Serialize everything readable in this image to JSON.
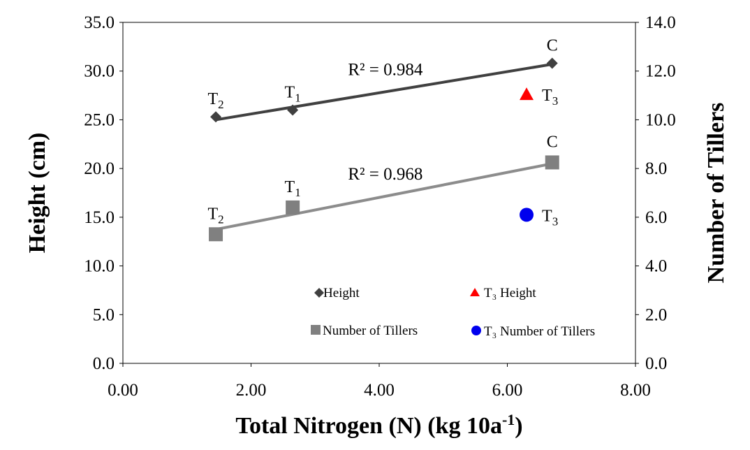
{
  "chart_data": {
    "type": "scatter",
    "xlabel": "Total Nitrogen (N) (kg 10a",
    "xlabel_sup": "-1",
    "xlabel_close": ")",
    "ylabel_left": "Height (cm)",
    "ylabel_right": "Number of Tillers",
    "xlim": [
      0,
      8
    ],
    "ylim_left": [
      0,
      35
    ],
    "ylim_right": [
      0,
      14
    ],
    "x_ticks": [
      "0.00",
      "2.00",
      "4.00",
      "6.00",
      "8.00"
    ],
    "y_left_ticks": [
      "0.0",
      "5.0",
      "10.0",
      "15.0",
      "20.0",
      "25.0",
      "30.0",
      "35.0"
    ],
    "y_right_ticks": [
      "0.0",
      "2.0",
      "4.0",
      "6.0",
      "8.0",
      "10.0",
      "12.0",
      "14.0"
    ],
    "series": [
      {
        "name": "Height",
        "axis": "left",
        "marker": "diamond",
        "color": "#404040",
        "points": [
          {
            "x": 1.45,
            "y": 25.3,
            "label": "T",
            "sub": "2"
          },
          {
            "x": 2.65,
            "y": 26.0,
            "label": "T",
            "sub": "1"
          },
          {
            "x": 6.7,
            "y": 30.8,
            "label": "C",
            "sub": ""
          }
        ],
        "trendline": {
          "color": "#404040",
          "x": [
            1.45,
            6.7
          ],
          "y": [
            25.0,
            30.7
          ],
          "r2_text": "R² = 0.984"
        }
      },
      {
        "name": "Number of Tillers",
        "axis": "right",
        "marker": "square",
        "color": "#808080",
        "points": [
          {
            "x": 1.45,
            "y": 5.3,
            "label": "T",
            "sub": "2"
          },
          {
            "x": 2.65,
            "y": 6.4,
            "label": "T",
            "sub": "1"
          },
          {
            "x": 6.7,
            "y": 8.25,
            "label": "C",
            "sub": ""
          }
        ],
        "trendline": {
          "color": "#8c8c8c",
          "x": [
            1.45,
            6.7
          ],
          "y": [
            5.5,
            8.2
          ],
          "r2_text": "R² = 0.968"
        }
      },
      {
        "name": "T₃ Height",
        "axis": "left",
        "marker": "triangle",
        "color": "#ff0000",
        "points": [
          {
            "x": 6.3,
            "y": 27.6,
            "label": "T",
            "sub": "3"
          }
        ]
      },
      {
        "name": "T₃ Number of Tillers",
        "axis": "right",
        "marker": "circle",
        "color": "#0000ee",
        "points": [
          {
            "x": 6.3,
            "y": 6.1,
            "label": "T",
            "sub": "3"
          }
        ]
      }
    ],
    "grid": false,
    "legend_position": "inside-bottom"
  }
}
